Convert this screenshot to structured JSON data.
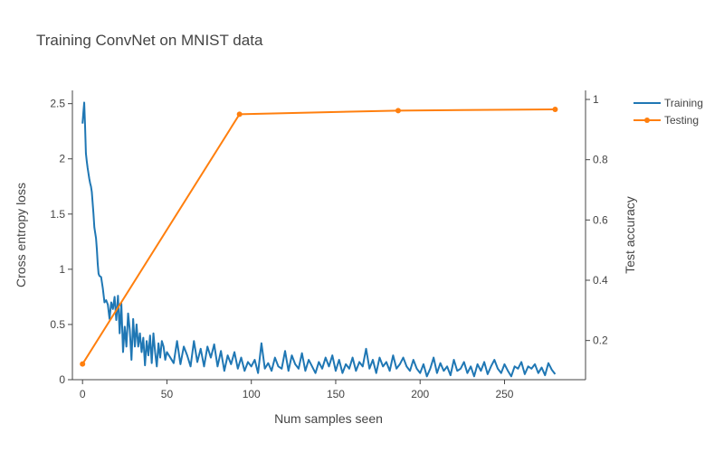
{
  "chart_data": {
    "type": "line",
    "title": "Training ConvNet on MNIST data",
    "xlabel": "Num samples seen",
    "ylabel": "Cross entropy loss",
    "y2label": "Test accuracy",
    "xlim": [
      -6,
      298
    ],
    "ylim": [
      0,
      2.62
    ],
    "y2lim": [
      0.07,
      1.03
    ],
    "xticks": [
      0,
      50,
      100,
      150,
      200,
      250
    ],
    "yticks": [
      0,
      0.5,
      1,
      1.5,
      2,
      2.5
    ],
    "yticklabels": [
      "0",
      "0.5",
      "1",
      "1.5",
      "2",
      "2.5"
    ],
    "y2ticks": [
      0.2,
      0.4,
      0.6,
      0.8,
      1
    ],
    "y2ticklabels": [
      "0.2",
      "0.4",
      "0.6",
      "0.8",
      "1"
    ],
    "grid": false,
    "legend_position": "top-right",
    "colors": {
      "training": "#1f77b4",
      "testing": "#ff7f0e",
      "text": "#444444",
      "axis": "#444444"
    },
    "series": [
      {
        "name": "Training",
        "axis": "left",
        "mode": "lines",
        "x": [
          0,
          0.5,
          1,
          1.5,
          2,
          2.5,
          3,
          3.5,
          4,
          4.5,
          5,
          5.5,
          6,
          6.5,
          7,
          7.5,
          8,
          8.5,
          9,
          9.5,
          10,
          11,
          12,
          13,
          14,
          15,
          16,
          17,
          18,
          19,
          20,
          21,
          22,
          23,
          24,
          25,
          26,
          27,
          28,
          29,
          30,
          31,
          32,
          33,
          34,
          35,
          36,
          37,
          38,
          39,
          40,
          41,
          42,
          43,
          44,
          45,
          46,
          47,
          48,
          49,
          50,
          52,
          54,
          56,
          58,
          60,
          62,
          64,
          66,
          68,
          70,
          72,
          74,
          76,
          78,
          80,
          82,
          84,
          86,
          88,
          90,
          92,
          94,
          96,
          98,
          100,
          102,
          104,
          106,
          108,
          110,
          112,
          114,
          116,
          118,
          120,
          122,
          124,
          126,
          128,
          130,
          132,
          134,
          136,
          138,
          140,
          142,
          144,
          146,
          148,
          150,
          152,
          154,
          156,
          158,
          160,
          162,
          164,
          166,
          168,
          170,
          172,
          174,
          176,
          178,
          180,
          182,
          184,
          186,
          188,
          190,
          192,
          194,
          196,
          198,
          200,
          202,
          204,
          206,
          208,
          210,
          212,
          214,
          216,
          218,
          220,
          222,
          224,
          226,
          228,
          230,
          232,
          234,
          236,
          238,
          240,
          242,
          244,
          246,
          248,
          250,
          252,
          254,
          256,
          258,
          260,
          262,
          264,
          266,
          268,
          270,
          272,
          274,
          276,
          278,
          280
        ],
        "values": [
          2.32,
          2.42,
          2.51,
          2.3,
          2.05,
          1.98,
          1.92,
          1.87,
          1.82,
          1.78,
          1.75,
          1.7,
          1.6,
          1.5,
          1.38,
          1.33,
          1.28,
          1.18,
          1.05,
          0.96,
          0.94,
          0.93,
          0.83,
          0.7,
          0.72,
          0.68,
          0.55,
          0.7,
          0.64,
          0.75,
          0.54,
          0.76,
          0.42,
          0.69,
          0.25,
          0.48,
          0.3,
          0.6,
          0.45,
          0.18,
          0.55,
          0.3,
          0.5,
          0.3,
          0.42,
          0.25,
          0.38,
          0.13,
          0.35,
          0.22,
          0.4,
          0.15,
          0.42,
          0.25,
          0.12,
          0.33,
          0.2,
          0.35,
          0.3,
          0.18,
          0.25,
          0.2,
          0.15,
          0.35,
          0.14,
          0.3,
          0.22,
          0.12,
          0.35,
          0.16,
          0.28,
          0.12,
          0.3,
          0.2,
          0.32,
          0.12,
          0.26,
          0.08,
          0.22,
          0.14,
          0.25,
          0.1,
          0.2,
          0.08,
          0.16,
          0.12,
          0.18,
          0.06,
          0.33,
          0.1,
          0.15,
          0.08,
          0.2,
          0.12,
          0.1,
          0.26,
          0.08,
          0.22,
          0.14,
          0.1,
          0.24,
          0.08,
          0.18,
          0.12,
          0.06,
          0.16,
          0.1,
          0.2,
          0.12,
          0.22,
          0.08,
          0.18,
          0.06,
          0.14,
          0.1,
          0.2,
          0.08,
          0.16,
          0.12,
          0.28,
          0.1,
          0.18,
          0.06,
          0.2,
          0.12,
          0.16,
          0.08,
          0.22,
          0.1,
          0.14,
          0.2,
          0.12,
          0.08,
          0.18,
          0.1,
          0.06,
          0.14,
          0.03,
          0.1,
          0.2,
          0.06,
          0.15,
          0.08,
          0.12,
          0.04,
          0.18,
          0.08,
          0.1,
          0.16,
          0.06,
          0.12,
          0.03,
          0.14,
          0.08,
          0.16,
          0.05,
          0.12,
          0.18,
          0.1,
          0.06,
          0.14,
          0.08,
          0.03,
          0.12,
          0.1,
          0.16,
          0.05,
          0.12,
          0.1,
          0.14,
          0.06,
          0.11,
          0.04,
          0.15,
          0.09,
          0.05
        ],
        "color": "#1f77b4"
      },
      {
        "name": "Testing",
        "axis": "right",
        "mode": "lines+markers",
        "x": [
          0,
          93,
          187,
          280
        ],
        "values": [
          0.122,
          0.951,
          0.963,
          0.967
        ],
        "color": "#ff7f0e"
      }
    ]
  }
}
